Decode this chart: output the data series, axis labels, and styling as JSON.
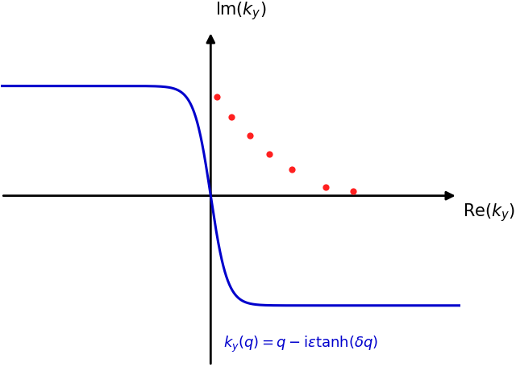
{
  "bg_color": "#ffffff",
  "curve_color": "#0000cc",
  "curve_linewidth": 2.2,
  "dot_color": "#ff2020",
  "dot_size": 35,
  "epsilon": 1.0,
  "delta": 3.0,
  "q_range": [
    -5.0,
    5.0
  ],
  "xlim": [
    -4.2,
    5.0
  ],
  "ylim": [
    -1.55,
    1.55
  ],
  "axis_color": "#000000",
  "dot_x": [
    0.12,
    0.42,
    0.78,
    1.18,
    1.62,
    2.3,
    2.85
  ],
  "dot_y": [
    0.9,
    0.72,
    0.55,
    0.38,
    0.24,
    0.08,
    0.04
  ],
  "formula_color": "#0000cc",
  "formula_x": 1.8,
  "formula_y": -1.35
}
